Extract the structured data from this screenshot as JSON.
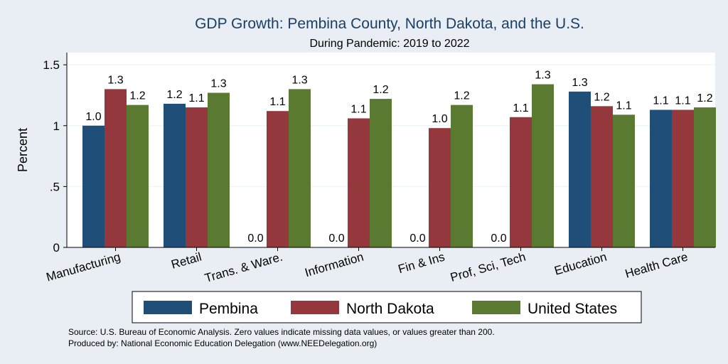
{
  "chart_data": {
    "type": "bar",
    "title": "GDP Growth: Pembina County, North Dakota, and the U.S.",
    "subtitle": "During Pandemic: 2019 to 2022",
    "ylabel": "Percent",
    "xlabel": "",
    "ylim": [
      0,
      1.6
    ],
    "yticks": [
      {
        "value": 0,
        "label": "0"
      },
      {
        "value": 0.5,
        "label": ".5"
      },
      {
        "value": 1,
        "label": "1"
      },
      {
        "value": 1.5,
        "label": "1.5"
      }
    ],
    "grid": true,
    "legend_position": "bottom",
    "categories": [
      "Manufacturing",
      "Retail",
      "Trans. & Ware.",
      "Information",
      "Fin & Ins",
      "Prof, Sci, Tech",
      "Education",
      "Health Care"
    ],
    "series": [
      {
        "name": "Pembina",
        "color": "#1f4e79",
        "values": [
          1.0,
          1.18,
          0,
          0,
          0,
          0,
          1.28,
          1.13
        ],
        "labels": [
          "1.0",
          "1.2",
          "0.0",
          "0.0",
          "0.0",
          "0.0",
          "1.3",
          "1.1"
        ]
      },
      {
        "name": "North Dakota",
        "color": "#95383e",
        "values": [
          1.3,
          1.15,
          1.12,
          1.06,
          0.98,
          1.07,
          1.16,
          1.13
        ],
        "labels": [
          "1.3",
          "1.1",
          "1.1",
          "1.1",
          "1.0",
          "1.1",
          "1.2",
          "1.1"
        ]
      },
      {
        "name": "United States",
        "color": "#5a7a32",
        "values": [
          1.17,
          1.27,
          1.3,
          1.22,
          1.17,
          1.34,
          1.09,
          1.15
        ],
        "labels": [
          "1.2",
          "1.3",
          "1.3",
          "1.2",
          "1.2",
          "1.3",
          "1.1",
          "1.2"
        ]
      }
    ],
    "notes": [
      "Source: U.S. Bureau of Economic Analysis. Zero values indicate missing data values, or values greater than 200.",
      "Produced by: National Economic Education Delegation (www.NEEDelegation.org)"
    ]
  }
}
